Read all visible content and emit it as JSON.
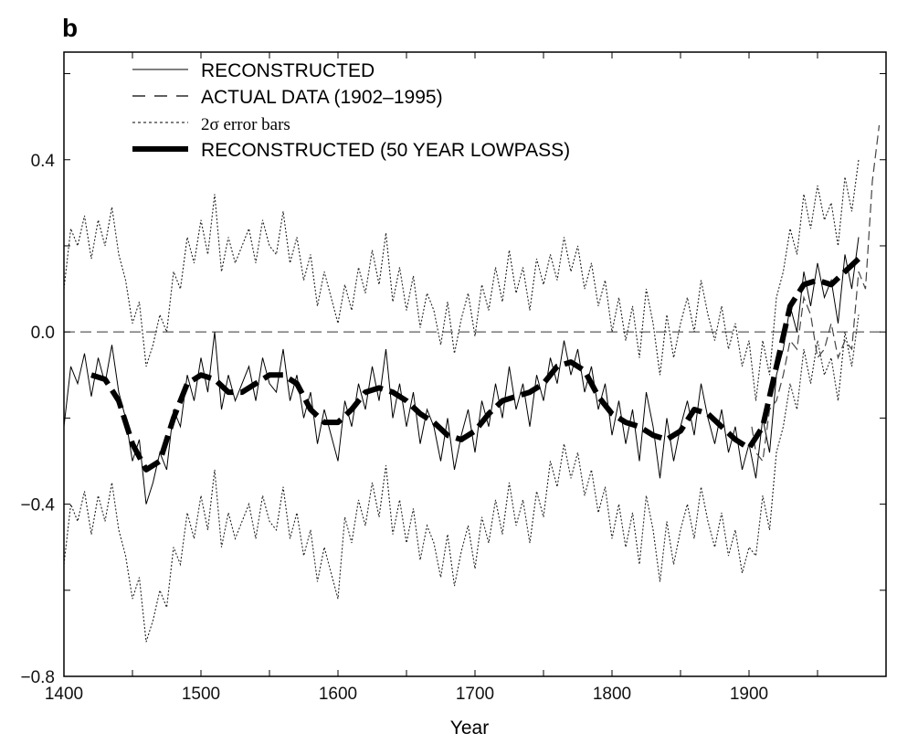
{
  "chart_data": {
    "type": "line",
    "panel_label": "b",
    "xlabel": "Year",
    "ylabel": "",
    "xlim": [
      1400,
      2000
    ],
    "ylim": [
      -0.8,
      0.65
    ],
    "xticks": [
      1400,
      1500,
      1600,
      1700,
      1800,
      1900
    ],
    "xtick_labels": [
      "1400",
      "1500",
      "1600",
      "1700",
      "1800",
      "1900"
    ],
    "yticks": [
      0.4,
      0.0,
      -0.4,
      -0.8
    ],
    "ytick_labels": [
      "0.4",
      "0.0",
      "−0.4",
      "−0.8"
    ],
    "zero_line": true,
    "grid": false,
    "legend_position": "top-left",
    "legend": [
      {
        "label": "RECONSTRUCTED",
        "style": "solid-thin"
      },
      {
        "label": "ACTUAL DATA (1902–1995)",
        "style": "dashed"
      },
      {
        "label": "2σ error bars",
        "style": "dotted"
      },
      {
        "label": "RECONSTRUCTED (50 YEAR LOWPASS)",
        "style": "thick-dashed"
      }
    ],
    "series": [
      {
        "name": "RECONSTRUCTED",
        "x_start": 1400,
        "x_step": 5,
        "values": [
          -0.22,
          -0.08,
          -0.12,
          -0.05,
          -0.15,
          -0.06,
          -0.12,
          -0.03,
          -0.14,
          -0.2,
          -0.3,
          -0.25,
          -0.4,
          -0.35,
          -0.28,
          -0.32,
          -0.18,
          -0.22,
          -0.1,
          -0.16,
          -0.06,
          -0.14,
          0.0,
          -0.18,
          -0.1,
          -0.16,
          -0.12,
          -0.08,
          -0.16,
          -0.06,
          -0.12,
          -0.14,
          -0.04,
          -0.16,
          -0.1,
          -0.2,
          -0.14,
          -0.26,
          -0.18,
          -0.24,
          -0.3,
          -0.16,
          -0.22,
          -0.12,
          -0.18,
          -0.08,
          -0.16,
          -0.04,
          -0.2,
          -0.12,
          -0.22,
          -0.14,
          -0.26,
          -0.18,
          -0.22,
          -0.3,
          -0.2,
          -0.32,
          -0.24,
          -0.18,
          -0.28,
          -0.16,
          -0.22,
          -0.12,
          -0.2,
          -0.08,
          -0.18,
          -0.12,
          -0.22,
          -0.1,
          -0.16,
          -0.06,
          -0.12,
          -0.02,
          -0.1,
          -0.04,
          -0.14,
          -0.08,
          -0.18,
          -0.12,
          -0.24,
          -0.16,
          -0.26,
          -0.18,
          -0.3,
          -0.14,
          -0.22,
          -0.34,
          -0.2,
          -0.3,
          -0.22,
          -0.16,
          -0.24,
          -0.12,
          -0.2,
          -0.26,
          -0.18,
          -0.28,
          -0.22,
          -0.32,
          -0.26,
          -0.34,
          -0.2,
          -0.28,
          -0.1,
          -0.04,
          0.06,
          0.0,
          0.14,
          0.06,
          0.16,
          0.08,
          0.12,
          0.02,
          0.18,
          0.1,
          0.22
        ]
      },
      {
        "name": "ACTUAL DATA (1902–1995)",
        "x": [
          1902,
          1905,
          1910,
          1915,
          1920,
          1925,
          1930,
          1935,
          1940,
          1945,
          1950,
          1955,
          1960,
          1965,
          1970,
          1975,
          1980,
          1985,
          1990,
          1995
        ],
        "values": [
          -0.22,
          -0.28,
          -0.3,
          -0.18,
          -0.16,
          -0.1,
          -0.02,
          -0.04,
          0.08,
          0.04,
          -0.06,
          -0.04,
          0.02,
          -0.06,
          -0.02,
          -0.04,
          0.14,
          0.1,
          0.35,
          0.48
        ]
      },
      {
        "name": "2σ error bars",
        "half_width_by_period": [
          {
            "from": 1400,
            "to": 1600,
            "value": 0.32
          },
          {
            "from": 1600,
            "to": 1750,
            "value": 0.27
          },
          {
            "from": 1750,
            "to": 1900,
            "value": 0.24
          },
          {
            "from": 1900,
            "to": 1980,
            "value": 0.18
          }
        ]
      },
      {
        "name": "RECONSTRUCTED (50 YEAR LOWPASS)",
        "x": [
          1420,
          1430,
          1440,
          1450,
          1460,
          1470,
          1480,
          1490,
          1500,
          1510,
          1520,
          1530,
          1540,
          1550,
          1560,
          1570,
          1580,
          1590,
          1600,
          1610,
          1620,
          1630,
          1640,
          1650,
          1660,
          1670,
          1680,
          1690,
          1700,
          1710,
          1720,
          1730,
          1740,
          1750,
          1760,
          1770,
          1780,
          1790,
          1800,
          1810,
          1820,
          1830,
          1840,
          1850,
          1860,
          1870,
          1880,
          1890,
          1900,
          1910,
          1920,
          1930,
          1940,
          1950,
          1960,
          1970,
          1980
        ],
        "values": [
          -0.1,
          -0.11,
          -0.16,
          -0.26,
          -0.32,
          -0.3,
          -0.2,
          -0.12,
          -0.1,
          -0.11,
          -0.14,
          -0.14,
          -0.12,
          -0.1,
          -0.1,
          -0.12,
          -0.18,
          -0.21,
          -0.21,
          -0.18,
          -0.14,
          -0.13,
          -0.14,
          -0.16,
          -0.19,
          -0.21,
          -0.24,
          -0.25,
          -0.23,
          -0.19,
          -0.16,
          -0.15,
          -0.14,
          -0.12,
          -0.08,
          -0.07,
          -0.09,
          -0.15,
          -0.19,
          -0.21,
          -0.22,
          -0.24,
          -0.25,
          -0.23,
          -0.18,
          -0.19,
          -0.22,
          -0.25,
          -0.27,
          -0.22,
          -0.08,
          0.06,
          0.11,
          0.12,
          0.11,
          0.14,
          0.17
        ]
      }
    ]
  }
}
